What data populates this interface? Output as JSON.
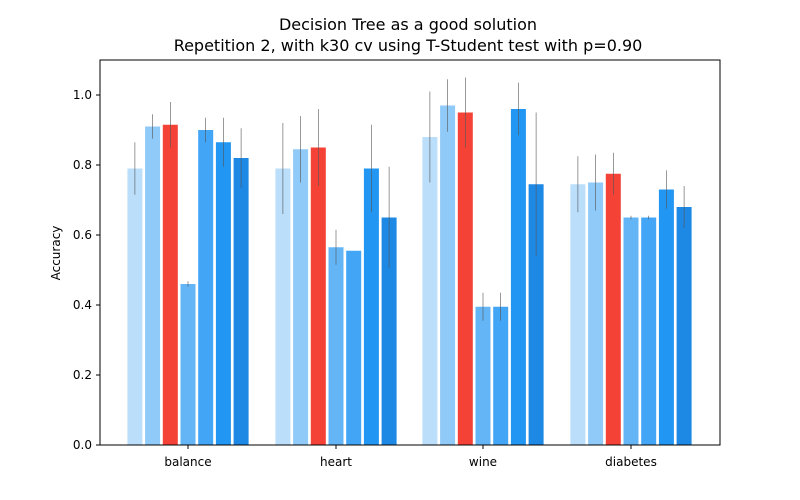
{
  "chart_data": {
    "type": "bar",
    "title": "Decision Tree as a good solution",
    "subtitle": "Repetition 2, with k30 cv using T-Student test with p=0.90",
    "xlabel": "",
    "ylabel": "Accuracy",
    "ylim": [
      0,
      1.1
    ],
    "yticks": [
      "0.0",
      "0.2",
      "0.4",
      "0.6",
      "0.8",
      "1.0"
    ],
    "categories": [
      "balance",
      "heart",
      "wine",
      "diabetes"
    ],
    "highlight_series_index": 2,
    "colors": [
      "#bbdefb",
      "#90caf9",
      "#f44336",
      "#64b5f6",
      "#42a5f5",
      "#2196f3",
      "#1e88e5"
    ],
    "error_color": "#555555",
    "series": [
      {
        "values": [
          0.79,
          0.79,
          0.88,
          0.745
        ],
        "errors": [
          0.075,
          0.13,
          0.13,
          0.08
        ]
      },
      {
        "values": [
          0.91,
          0.845,
          0.97,
          0.75
        ],
        "errors": [
          0.035,
          0.095,
          0.075,
          0.08
        ]
      },
      {
        "values": [
          0.915,
          0.85,
          0.95,
          0.775
        ],
        "errors": [
          0.065,
          0.11,
          0.1,
          0.06
        ]
      },
      {
        "values": [
          0.46,
          0.565,
          0.395,
          0.65
        ],
        "errors": [
          0.008,
          0.05,
          0.04,
          0.005
        ]
      },
      {
        "values": [
          0.9,
          0.555,
          0.395,
          0.65
        ],
        "errors": [
          0.035,
          0.0,
          0.04,
          0.005
        ]
      },
      {
        "values": [
          0.865,
          0.79,
          0.96,
          0.73
        ],
        "errors": [
          0.07,
          0.125,
          0.075,
          0.055
        ]
      },
      {
        "values": [
          0.82,
          0.65,
          0.745,
          0.68
        ],
        "errors": [
          0.085,
          0.145,
          0.205,
          0.06
        ]
      }
    ]
  }
}
